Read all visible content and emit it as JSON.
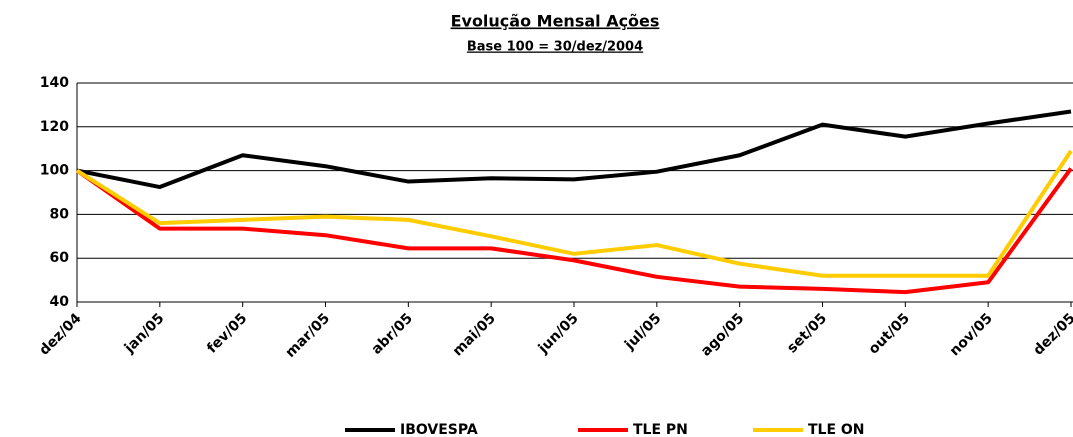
{
  "chart_data": {
    "type": "line",
    "title": "Evolução Mensal Ações",
    "subtitle": "Base 100 = 30/dez/2004",
    "categories": [
      "dez/04",
      "jan/05",
      "fev/05",
      "mar/05",
      "abr/05",
      "mai/05",
      "jun/05",
      "jul/05",
      "ago/05",
      "set/05",
      "out/05",
      "nov/05",
      "dez/05"
    ],
    "series": [
      {
        "name": "IBOVESPA",
        "color": "#000000",
        "values": [
          100,
          92.5,
          107,
          102,
          95,
          96.5,
          96,
          99.5,
          107,
          121,
          115.5,
          121.5,
          127
        ]
      },
      {
        "name": "TLE PN",
        "color": "#ff0000",
        "values": [
          100,
          73.5,
          73.5,
          70.5,
          64.5,
          64.5,
          59,
          51.5,
          47,
          46,
          44.5,
          49,
          101
        ]
      },
      {
        "name": "TLE ON",
        "color": "#ffcc00",
        "values": [
          100,
          76,
          77.5,
          79,
          77.5,
          70,
          62,
          66,
          57.5,
          52,
          52,
          52,
          109
        ]
      }
    ],
    "ylim": [
      40,
      140
    ],
    "yticks": [
      40,
      60,
      80,
      100,
      120,
      140
    ],
    "grid": true,
    "legend": "bottom"
  }
}
